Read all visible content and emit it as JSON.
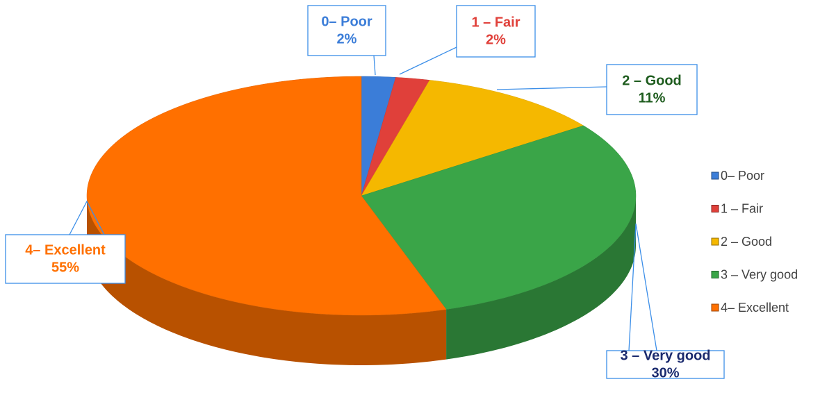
{
  "chart_data": {
    "type": "pie3d",
    "categories": [
      "0– Poor",
      "1 – Fair",
      "2 – Good",
      "3 – Very good",
      "4– Excellent"
    ],
    "values": [
      2,
      2,
      11,
      30,
      55
    ],
    "value_labels": [
      "2%",
      "2%",
      "11%",
      "30%",
      "55%"
    ],
    "colors": [
      "#3b7dd8",
      "#e0403a",
      "#f5b800",
      "#3aa548",
      "#ff7000"
    ],
    "label_colors": [
      "#3b7dd8",
      "#e0403a",
      "#1e5c1e",
      "#1a2a6e",
      "#ff7000"
    ],
    "legend": "right"
  }
}
